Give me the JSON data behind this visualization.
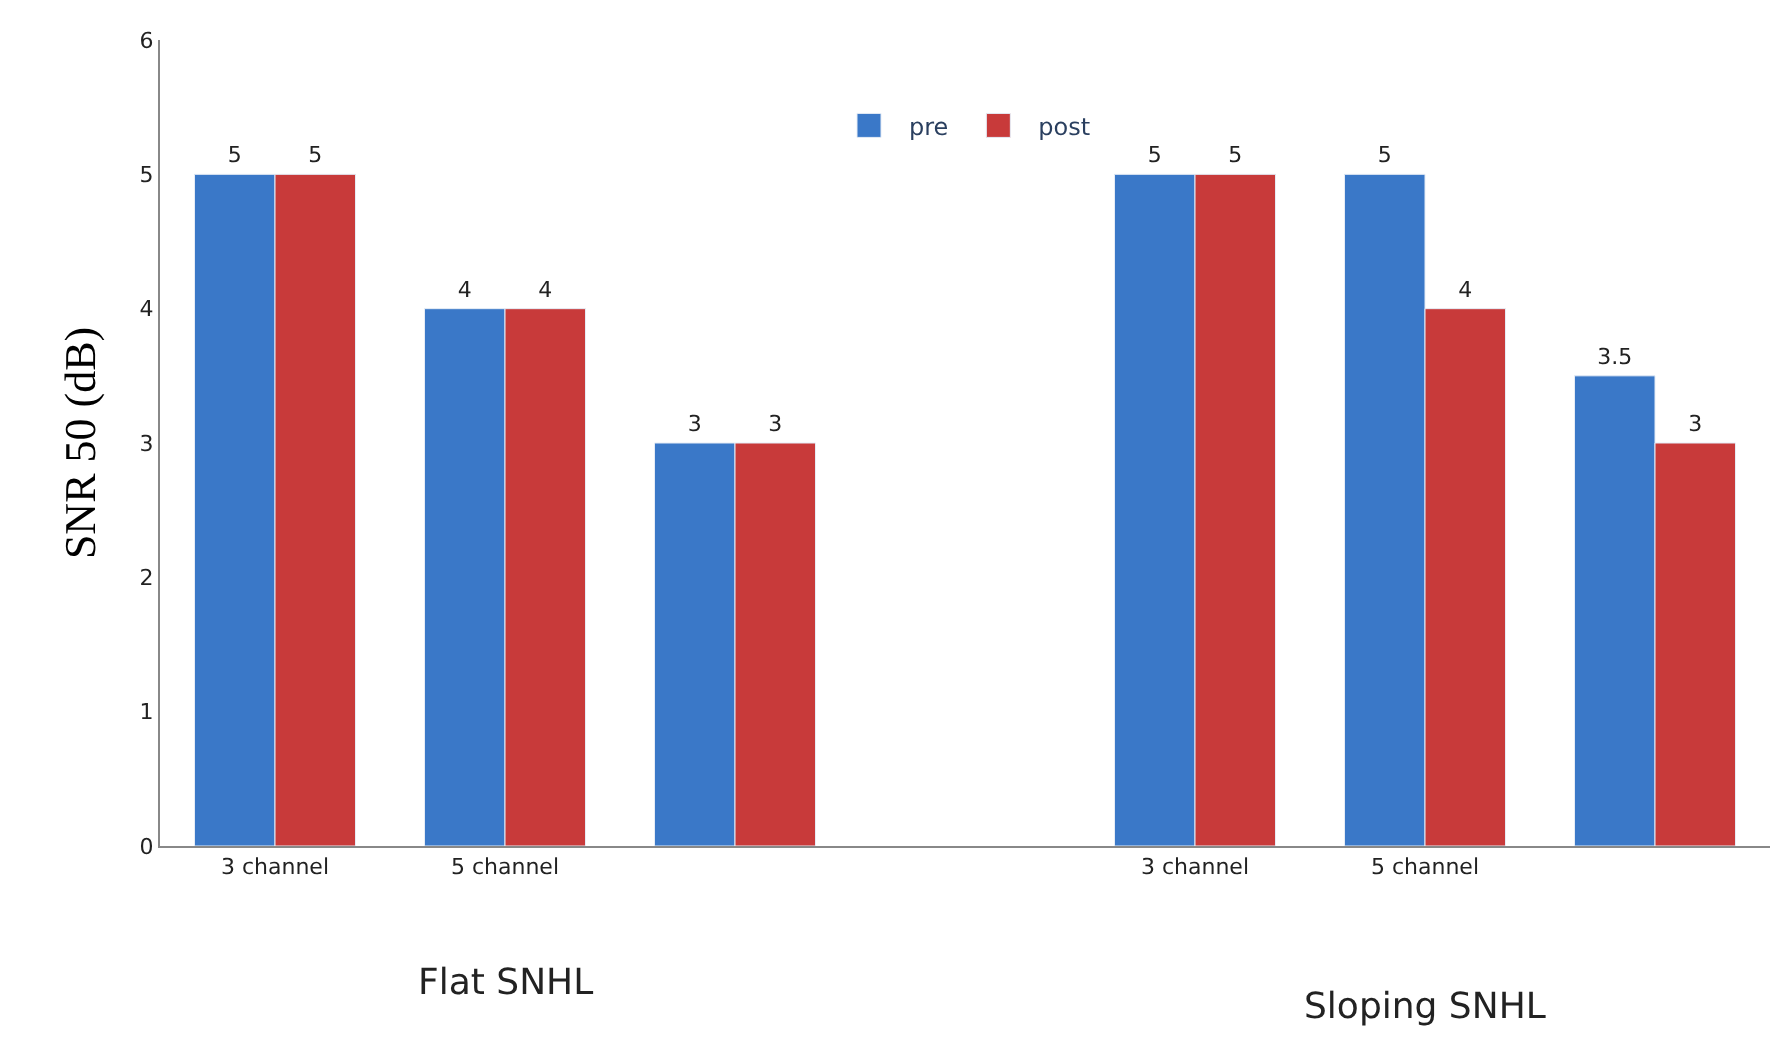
{
  "chart_data": {
    "type": "bar",
    "ylabel": "SNR 50 (dB)",
    "categories": [
      "3 channel",
      "5 channel",
      null,
      null,
      "3 channel",
      "5 channel",
      null
    ],
    "series": [
      {
        "name": "pre",
        "color": "#3a78c8",
        "values": [
          5,
          4,
          3,
          null,
          5,
          5,
          3.5
        ]
      },
      {
        "name": "post",
        "color": "#c83a3a",
        "values": [
          5,
          4,
          3,
          null,
          5,
          4,
          3
        ]
      }
    ],
    "ylim": [
      0,
      6
    ],
    "yticks": [
      0,
      1,
      2,
      3,
      4,
      5,
      6
    ],
    "legend": "top",
    "data_labels": true,
    "annotations": [
      "Flat SNHL",
      "Sloping SNHL"
    ]
  }
}
